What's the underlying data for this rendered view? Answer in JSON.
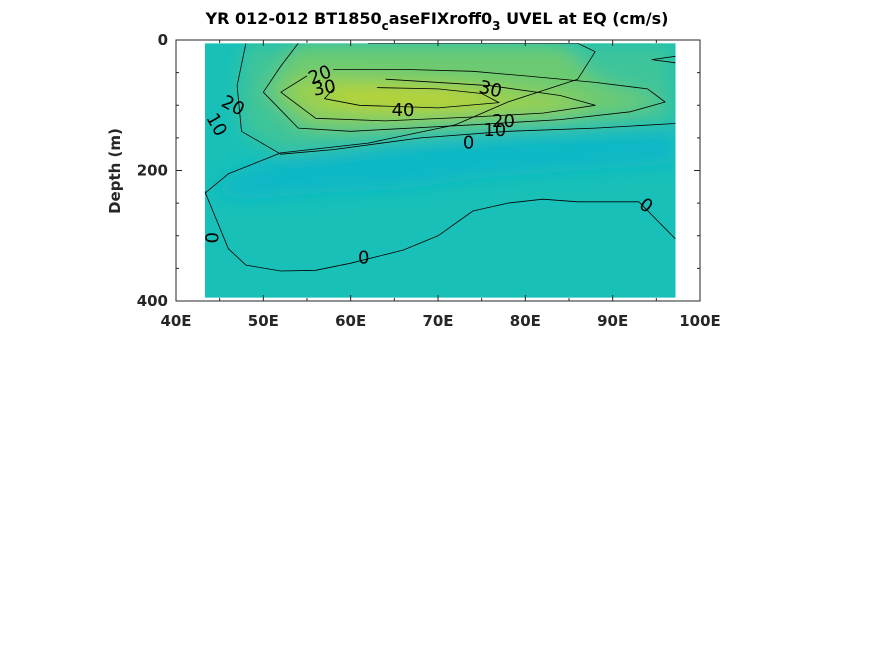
{
  "chart_data": {
    "type": "heatmap",
    "subtype": "filled-contour",
    "title": {
      "main": "YR 012-012 BT1850",
      "sub1": "c",
      "mid": "aseFIXroff0",
      "sub2": "3",
      "tail": " UVEL at EQ (cm/s)"
    },
    "xlabel": "",
    "ylabel": "Depth (m)",
    "xlim": [
      40,
      100
    ],
    "ylim": [
      0,
      400
    ],
    "y_reversed": true,
    "x_ticks": [
      40,
      50,
      60,
      70,
      80,
      90,
      100
    ],
    "x_tick_labels": [
      "40E",
      "50E",
      "60E",
      "70E",
      "80E",
      "90E",
      "100E"
    ],
    "y_ticks": [
      0,
      200,
      400
    ],
    "y_tick_labels": [
      "0",
      "200",
      "400"
    ],
    "data_extent": {
      "lon": [
        43.3,
        97.2
      ],
      "depth": [
        5,
        395
      ]
    },
    "contour_levels": [
      0,
      10,
      20,
      30,
      40
    ],
    "colors": {
      "below_zero": "#0ab8c6",
      "level_0": "#18c0b8",
      "level_10": "#3dc49a",
      "level_20": "#6cca72",
      "level_30": "#9ad050",
      "level_40": "#b9d330"
    },
    "contour_lines": [
      {
        "level": 0,
        "points": [
          [
            62,
            5
          ],
          [
            86,
            5
          ],
          [
            88,
            18
          ],
          [
            86,
            60
          ],
          [
            78,
            95
          ],
          [
            72,
            130
          ],
          [
            62,
            158
          ],
          [
            52,
            173
          ],
          [
            46,
            205
          ],
          [
            43.3,
            235
          ]
        ]
      },
      {
        "level": 0,
        "points": [
          [
            43.3,
            232
          ],
          [
            46,
            320
          ],
          [
            48,
            345
          ],
          [
            52,
            354
          ],
          [
            56,
            353
          ],
          [
            60,
            342
          ],
          [
            66,
            322
          ],
          [
            70,
            300
          ],
          [
            74,
            262
          ],
          [
            78,
            250
          ],
          [
            82,
            244
          ],
          [
            86,
            248
          ],
          [
            93,
            248
          ],
          [
            97.2,
            305
          ]
        ]
      },
      {
        "level": 0,
        "points": [
          [
            97.2,
            25
          ],
          [
            94.5,
            30
          ],
          [
            97.2,
            35
          ]
        ]
      },
      {
        "level": 10,
        "points": [
          [
            48,
            5
          ],
          [
            47,
            70
          ],
          [
            47.5,
            140
          ],
          [
            52,
            175
          ],
          [
            58,
            168
          ],
          [
            68,
            150
          ],
          [
            78,
            140
          ],
          [
            88,
            135
          ],
          [
            97.2,
            128
          ]
        ]
      },
      {
        "level": 20,
        "points": [
          [
            54,
            5
          ],
          [
            52,
            40
          ],
          [
            50,
            80
          ],
          [
            54,
            135
          ],
          [
            60,
            140
          ],
          [
            74,
            130
          ],
          [
            84,
            122
          ],
          [
            92,
            110
          ],
          [
            96,
            95
          ],
          [
            94,
            75
          ],
          [
            88,
            65
          ],
          [
            80,
            55
          ],
          [
            74,
            48
          ],
          [
            66,
            45
          ],
          [
            58,
            45
          ]
        ]
      },
      {
        "level": 30,
        "points": [
          [
            55,
            55
          ],
          [
            52,
            80
          ],
          [
            56,
            120
          ],
          [
            64,
            124
          ],
          [
            74,
            118
          ],
          [
            82,
            112
          ],
          [
            88,
            100
          ],
          [
            84,
            85
          ],
          [
            76,
            70
          ],
          [
            64,
            60
          ]
        ]
      },
      {
        "level": 40,
        "points": [
          [
            58,
            75
          ],
          [
            57,
            90
          ],
          [
            61,
            100
          ],
          [
            70,
            104
          ],
          [
            77,
            96
          ],
          [
            75,
            82
          ],
          [
            70,
            75
          ],
          [
            63,
            73
          ]
        ]
      }
    ],
    "contour_labels": [
      {
        "text": "20",
        "x": 56.5,
        "y": 54,
        "angle": -22
      },
      {
        "text": "30",
        "x": 57,
        "y": 74,
        "angle": -10
      },
      {
        "text": "40",
        "x": 66,
        "y": 108,
        "angle": 0
      },
      {
        "text": "30",
        "x": 76,
        "y": 76,
        "angle": 14
      },
      {
        "text": "20",
        "x": 46.5,
        "y": 101,
        "angle": 28
      },
      {
        "text": "10",
        "x": 44.6,
        "y": 130,
        "angle": 60
      },
      {
        "text": "0",
        "x": 73.5,
        "y": 158,
        "angle": 0
      },
      {
        "text": "10",
        "x": 76.5,
        "y": 139,
        "angle": 0
      },
      {
        "text": "20",
        "x": 77.5,
        "y": 125,
        "angle": 0
      },
      {
        "text": "0",
        "x": 44,
        "y": 303,
        "angle": 90
      },
      {
        "text": "0",
        "x": 61.5,
        "y": 334,
        "angle": 0
      },
      {
        "text": "0",
        "x": 93.8,
        "y": 254,
        "angle": 35
      }
    ]
  }
}
